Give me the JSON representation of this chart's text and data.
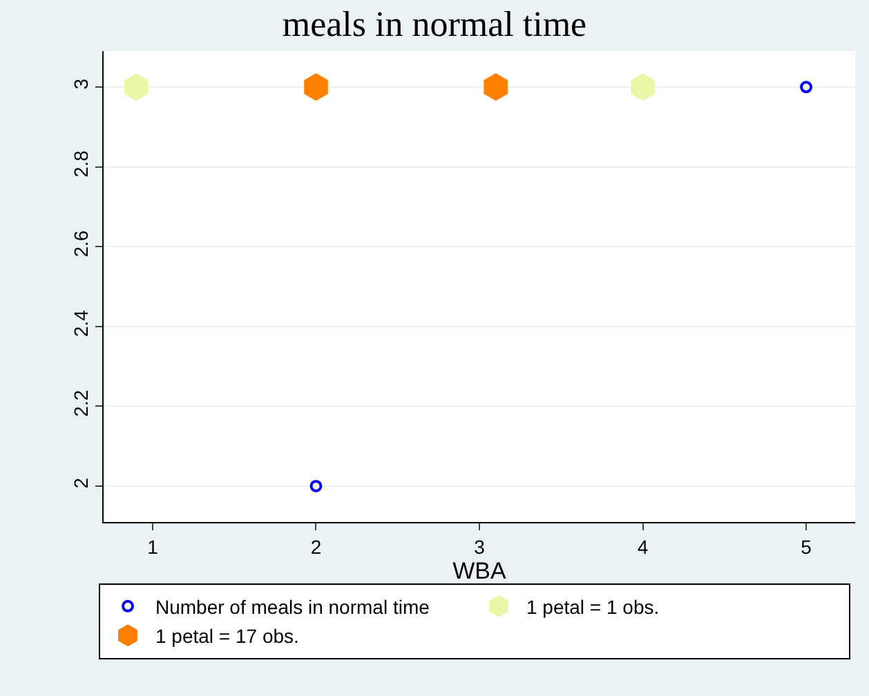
{
  "chart_data": {
    "type": "scatter",
    "title": "meals in normal time",
    "xlabel": "WBA",
    "series": [
      {
        "name": "Number of meals in normal time",
        "color": "#0000ff",
        "marker": "circle",
        "x": [
          2,
          5
        ],
        "values": [
          2,
          3
        ]
      },
      {
        "name": "1 petal = 1 obs.",
        "color": "#eaf7a6",
        "marker": "star",
        "x": [
          0.9,
          4
        ],
        "values": [
          3,
          3
        ]
      },
      {
        "name": "1 petal = 17 obs.",
        "color": "#ff8000",
        "marker": "star",
        "x": [
          2,
          3.1
        ],
        "values": [
          3,
          3
        ]
      }
    ],
    "xlim": [
      0.7,
      5.3
    ],
    "xticks": [
      1,
      2,
      3,
      4,
      5
    ],
    "ylim": [
      1.91,
      3.09
    ],
    "yticks": [
      2,
      2.2,
      2.4,
      2.6,
      2.8,
      3
    ],
    "grid": "y",
    "legend": "bottom"
  }
}
